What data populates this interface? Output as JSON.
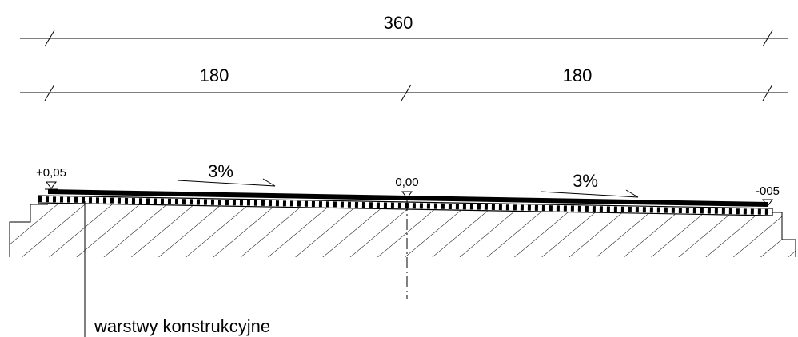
{
  "dimensions": {
    "total": "360",
    "left_half": "180",
    "right_half": "180"
  },
  "slopes": {
    "left": "3%",
    "right": "3%"
  },
  "levels": {
    "left": "+0,05",
    "center": "0,00",
    "right": "-005"
  },
  "caption": "warstwy konstrukcyjne"
}
